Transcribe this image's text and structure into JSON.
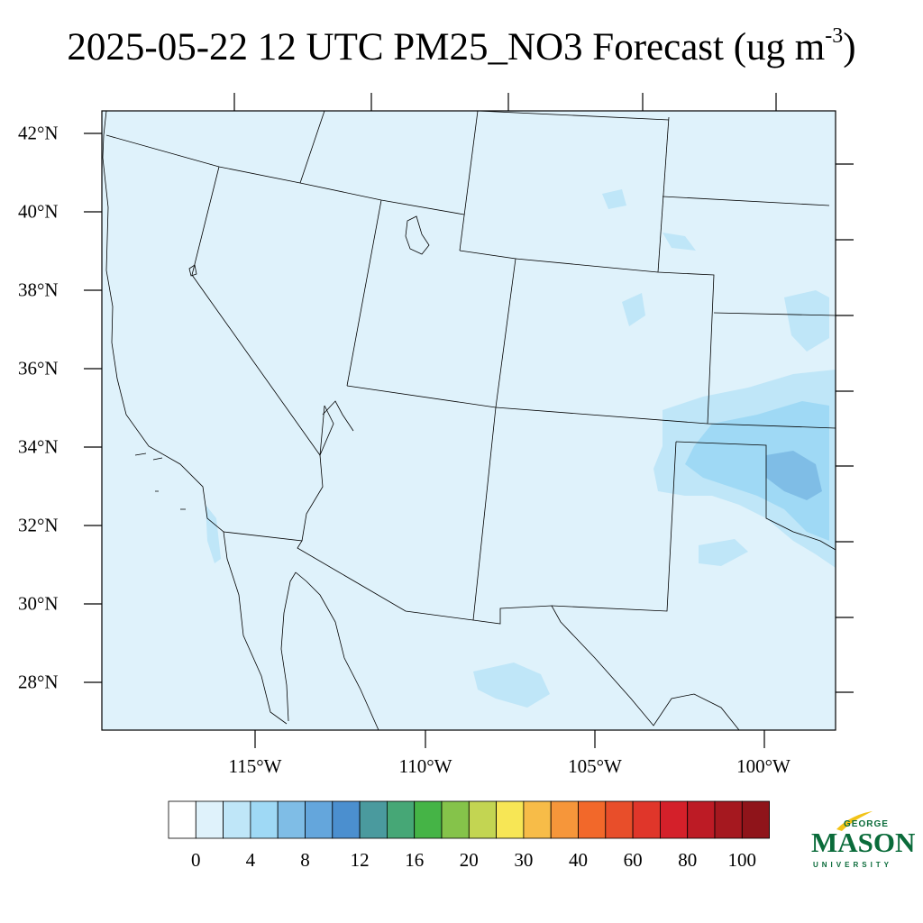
{
  "title": {
    "main": "2025-05-22 12 UTC PM25_NO3 Forecast (ug m",
    "superscript": "-3",
    "close": ")"
  },
  "map": {
    "background_color": "#dff2fb",
    "lat_labels": [
      "42°N",
      "40°N",
      "38°N",
      "36°N",
      "34°N",
      "32°N",
      "30°N",
      "28°N"
    ],
    "lon_labels": [
      "115°W",
      "110°W",
      "105°W",
      "100°W"
    ]
  },
  "colorbar": {
    "colors": [
      "#ffffff",
      "#dff2fb",
      "#bfe6f8",
      "#9fd9f5",
      "#7fbde6",
      "#64a6dc",
      "#4b8fcf",
      "#4a9a9e",
      "#46a776",
      "#45b446",
      "#85c34a",
      "#c3d552",
      "#f7e655",
      "#f7bc48",
      "#f6963a",
      "#f2682a",
      "#e84e2a",
      "#e0362a",
      "#d4202a",
      "#bd1b25",
      "#a5181f",
      "#8f141a"
    ],
    "labels": [
      "0",
      "4",
      "8",
      "12",
      "16",
      "20",
      "30",
      "40",
      "60",
      "80",
      "100"
    ]
  },
  "logo": {
    "top": "GEORGE",
    "main": "MASON",
    "bottom": "UNIVERSITY",
    "color": "#0a6b3a",
    "accent": "#f2c318"
  }
}
